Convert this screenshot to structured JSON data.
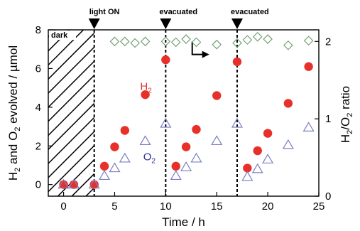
{
  "chart_data": {
    "type": "scatter",
    "xlabel": "Time / h",
    "ylabel_left": [
      "H",
      "2",
      " and O",
      "2",
      " evolved / µmol"
    ],
    "ylabel_right": [
      "H",
      "2",
      "/O",
      "2",
      " ratio"
    ],
    "xlim": [
      -1.5,
      25
    ],
    "xticks": [
      0,
      5,
      10,
      15,
      20,
      25
    ],
    "ylim_left": [
      -0.6,
      8
    ],
    "yticks_left": [
      0,
      2,
      4,
      6,
      8
    ],
    "ylim_right": [
      0,
      2.15
    ],
    "yticks_right": [
      0,
      1,
      2
    ],
    "dark_region": {
      "label": "dark",
      "x_start": -1.5,
      "x_end": 3
    },
    "events": [
      {
        "x": 3,
        "label": "light ON"
      },
      {
        "x": 10,
        "label": "evacuated"
      },
      {
        "x": 17,
        "label": "evacuated"
      }
    ],
    "colors": {
      "H2": "#e8302b",
      "O2": "#7b7fc4",
      "ratio": "#6a9a6a"
    },
    "series": [
      {
        "name": "H2",
        "label_main": "H",
        "label_sub": "2",
        "axis": "left",
        "marker": "filled-circle",
        "label_pos": [
          7.5,
          4.9
        ],
        "points": [
          [
            0,
            0
          ],
          [
            1,
            0
          ],
          [
            3,
            0
          ],
          [
            4,
            0.95
          ],
          [
            5,
            1.95
          ],
          [
            6,
            2.8
          ],
          [
            8,
            4.65
          ],
          [
            10,
            6.45
          ],
          [
            11,
            0.95
          ],
          [
            12,
            1.95
          ],
          [
            13,
            2.85
          ],
          [
            15,
            4.6
          ],
          [
            17,
            6.35
          ],
          [
            18,
            0.85
          ],
          [
            19,
            1.75
          ],
          [
            20,
            2.65
          ],
          [
            22,
            4.2
          ],
          [
            24,
            6.1
          ]
        ]
      },
      {
        "name": "O2",
        "label_main": "O",
        "label_sub": "2",
        "axis": "left",
        "marker": "open-triangle",
        "label_pos": [
          7.8,
          1.25
        ],
        "points": [
          [
            0,
            0
          ],
          [
            1,
            0
          ],
          [
            3,
            0
          ],
          [
            4,
            0.45
          ],
          [
            5,
            0.85
          ],
          [
            6,
            1.35
          ],
          [
            8,
            2.25
          ],
          [
            10,
            3.15
          ],
          [
            11,
            0.45
          ],
          [
            12,
            0.9
          ],
          [
            13,
            1.35
          ],
          [
            15,
            2.25
          ],
          [
            17,
            3.15
          ],
          [
            18,
            0.4
          ],
          [
            19,
            0.8
          ],
          [
            20,
            1.3
          ],
          [
            22,
            2.05
          ],
          [
            24,
            2.95
          ]
        ]
      },
      {
        "name": "H2/O2 ratio",
        "axis": "right",
        "marker": "open-diamond",
        "points": [
          [
            5,
            2.0
          ],
          [
            6,
            2.0
          ],
          [
            7,
            1.98
          ],
          [
            8,
            2.0
          ],
          [
            10,
            2.0
          ],
          [
            11,
            1.99
          ],
          [
            12,
            2.03
          ],
          [
            13,
            1.99
          ],
          [
            15,
            1.96
          ],
          [
            17,
            1.98
          ],
          [
            18,
            2.02
          ],
          [
            19,
            2.06
          ],
          [
            20,
            2.03
          ],
          [
            22,
            1.95
          ],
          [
            24,
            2.01
          ]
        ]
      }
    ]
  }
}
